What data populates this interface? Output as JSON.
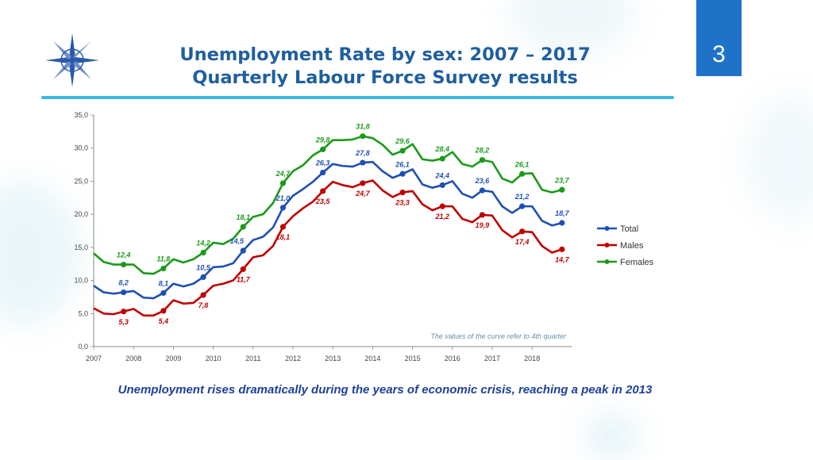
{
  "slide": {
    "title_line1": "Unemployment Rate by sex: 2007 – 2017",
    "title_line2": "Quarterly Labour Force Survey results",
    "number": "3",
    "caption": "Unemployment rises dramatically during the years of economic crisis, reaching a peak in 2013"
  },
  "colors": {
    "total": "#1f4fb4",
    "males": "#c00000",
    "females": "#1a9a1a",
    "title": "#1f5fa0",
    "accent": "#1e73c8"
  },
  "chart_data": {
    "type": "line",
    "title": "",
    "xlabel": "",
    "ylabel": "",
    "ylim": [
      0,
      35
    ],
    "yticks": [
      "0,0",
      "5,0",
      "10,0",
      "15,0",
      "20,0",
      "25,0",
      "30,0",
      "35,0"
    ],
    "xticks": [
      "2007",
      "2008",
      "2009",
      "2010",
      "2011",
      "2012",
      "2013",
      "2014",
      "2015",
      "2016",
      "2017",
      "2018"
    ],
    "note": "The values of the curve refer to 4th quarter",
    "legend_position": "right",
    "series": [
      {
        "name": "Total",
        "key": "total",
        "values": [
          9.2,
          8.2,
          8.0,
          8.2,
          8.4,
          7.4,
          7.3,
          8.1,
          9.5,
          9.1,
          9.5,
          10.5,
          12.0,
          12.1,
          12.6,
          14.5,
          16.1,
          16.6,
          18.0,
          21.0,
          22.8,
          23.8,
          24.9,
          26.3,
          27.6,
          27.3,
          27.2,
          27.8,
          27.9,
          26.5,
          25.5,
          26.1,
          26.8,
          24.5,
          24.0,
          24.4,
          25.0,
          23.1,
          22.5,
          23.6,
          23.4,
          21.2,
          20.2,
          21.2,
          21.2,
          19.0,
          18.3,
          18.7
        ]
      },
      {
        "name": "Males",
        "key": "males",
        "values": [
          5.8,
          5.0,
          4.9,
          5.3,
          5.7,
          4.7,
          4.7,
          5.4,
          7.0,
          6.5,
          6.6,
          7.8,
          9.2,
          9.5,
          10.0,
          11.7,
          13.5,
          13.8,
          15.2,
          18.1,
          19.7,
          20.9,
          21.9,
          23.5,
          24.9,
          24.4,
          24.1,
          24.7,
          25.1,
          23.6,
          22.6,
          23.3,
          23.5,
          21.5,
          20.6,
          21.2,
          21.2,
          19.3,
          18.8,
          19.9,
          19.8,
          17.6,
          16.5,
          17.4,
          17.3,
          15.2,
          14.2,
          14.7
        ]
      },
      {
        "name": "Females",
        "key": "females",
        "values": [
          14.1,
          12.8,
          12.4,
          12.4,
          12.4,
          11.1,
          11.0,
          11.8,
          13.2,
          12.7,
          13.2,
          14.2,
          15.7,
          15.5,
          16.3,
          18.1,
          19.6,
          20.0,
          21.7,
          24.7,
          26.5,
          27.4,
          28.9,
          29.8,
          31.2,
          31.2,
          31.3,
          31.8,
          31.5,
          30.5,
          29.0,
          29.6,
          30.6,
          28.3,
          28.1,
          28.4,
          29.4,
          27.6,
          27.2,
          28.2,
          27.9,
          25.4,
          24.8,
          26.1,
          26.2,
          23.7,
          23.3,
          23.7
        ]
      }
    ],
    "data_labels": [
      {
        "series": "total",
        "index": 3,
        "text": "8,2"
      },
      {
        "series": "total",
        "index": 7,
        "text": "8,1"
      },
      {
        "series": "total",
        "index": 11,
        "text": "10,5"
      },
      {
        "series": "total",
        "index": 15,
        "text": "14,5"
      },
      {
        "series": "total",
        "index": 19,
        "text": "21,0"
      },
      {
        "series": "total",
        "index": 23,
        "text": "26,3"
      },
      {
        "series": "total",
        "index": 27,
        "text": "27,8"
      },
      {
        "series": "total",
        "index": 31,
        "text": "26,1"
      },
      {
        "series": "total",
        "index": 35,
        "text": "24,4"
      },
      {
        "series": "total",
        "index": 39,
        "text": "23,6"
      },
      {
        "series": "total",
        "index": 43,
        "text": "21,2"
      },
      {
        "series": "total",
        "index": 47,
        "text": "18,7"
      },
      {
        "series": "males",
        "index": 3,
        "text": "5,3"
      },
      {
        "series": "males",
        "index": 7,
        "text": "5,4"
      },
      {
        "series": "males",
        "index": 11,
        "text": "7,8"
      },
      {
        "series": "males",
        "index": 15,
        "text": "11,7"
      },
      {
        "series": "males",
        "index": 19,
        "text": "18,1"
      },
      {
        "series": "males",
        "index": 23,
        "text": "23,5"
      },
      {
        "series": "males",
        "index": 27,
        "text": "24,7"
      },
      {
        "series": "males",
        "index": 31,
        "text": "23,3"
      },
      {
        "series": "males",
        "index": 35,
        "text": "21,2"
      },
      {
        "series": "males",
        "index": 39,
        "text": "19,9"
      },
      {
        "series": "males",
        "index": 43,
        "text": "17,4"
      },
      {
        "series": "males",
        "index": 47,
        "text": "14,7"
      },
      {
        "series": "females",
        "index": 3,
        "text": "12,4"
      },
      {
        "series": "females",
        "index": 7,
        "text": "11,8"
      },
      {
        "series": "females",
        "index": 11,
        "text": "14,2"
      },
      {
        "series": "females",
        "index": 15,
        "text": "18,1"
      },
      {
        "series": "females",
        "index": 19,
        "text": "24,7"
      },
      {
        "series": "females",
        "index": 23,
        "text": "29,8"
      },
      {
        "series": "females",
        "index": 27,
        "text": "31,8"
      },
      {
        "series": "females",
        "index": 31,
        "text": "29,6"
      },
      {
        "series": "females",
        "index": 35,
        "text": "28,4"
      },
      {
        "series": "females",
        "index": 39,
        "text": "28,2"
      },
      {
        "series": "females",
        "index": 43,
        "text": "26,1"
      },
      {
        "series": "females",
        "index": 47,
        "text": "23,7"
      }
    ]
  }
}
